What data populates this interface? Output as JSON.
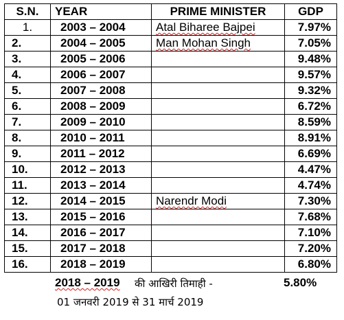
{
  "headers": {
    "sn": "S.N.",
    "year": "YEAR",
    "pm": "PRIME MINISTER",
    "gdp": "GDP"
  },
  "rows": [
    {
      "sn": "1.",
      "year": "2003  – 2004",
      "pm": "Atal Biharee Bajpei",
      "gdp": "7.97%"
    },
    {
      "sn": "2.",
      "year": "2004  – 2005",
      "pm": "Man Mohan Singh",
      "gdp": "7.05%"
    },
    {
      "sn": "3.",
      "year": "2005  – 2006",
      "pm": "",
      "gdp": "9.48%"
    },
    {
      "sn": "4.",
      "year": "2006  – 2007",
      "pm": "",
      "gdp": "9.57%"
    },
    {
      "sn": "5.",
      "year": "2007  – 2008",
      "pm": "",
      "gdp": "9.32%"
    },
    {
      "sn": "6.",
      "year": "2008  – 2009",
      "pm": "",
      "gdp": "6.72%"
    },
    {
      "sn": "7.",
      "year": "2009  – 2010",
      "pm": "",
      "gdp": "8.59%"
    },
    {
      "sn": "8.",
      "year": "2010  – 2011",
      "pm": "",
      "gdp": "8.91%"
    },
    {
      "sn": "9.",
      "year": "2011  – 2012",
      "pm": "",
      "gdp": "6.69%"
    },
    {
      "sn": "10.",
      "year": "2012  – 2013",
      "pm": "",
      "gdp": "4.47%"
    },
    {
      "sn": "11.",
      "year": "2013  – 2014",
      "pm": "",
      "gdp": "4.74%"
    },
    {
      "sn": "12.",
      "year": "2014  – 2015",
      "pm": "Narendr Modi",
      "gdp": "7.30%"
    },
    {
      "sn": "13.",
      "year": "2015  – 2016",
      "pm": "",
      "gdp": "7.68%"
    },
    {
      "sn": "14.",
      "year": "2016  – 2017",
      "pm": "",
      "gdp": "7.10%"
    },
    {
      "sn": "15.",
      "year": "2017  – 2018",
      "pm": "",
      "gdp": "7.20%"
    },
    {
      "sn": "16.",
      "year": "2018  – 2019",
      "pm": "",
      "gdp": "6.80%"
    }
  ],
  "footer": {
    "year": "2018  – 2019",
    "hindi": "की आखिरी तिमाही -",
    "gdp": "5.80%",
    "period": "01 जनवरी 2019 से 31 मार्च 2019"
  },
  "colors": {
    "text": "#000000",
    "border": "#000000",
    "spellcheck_underline": "#d02020"
  }
}
